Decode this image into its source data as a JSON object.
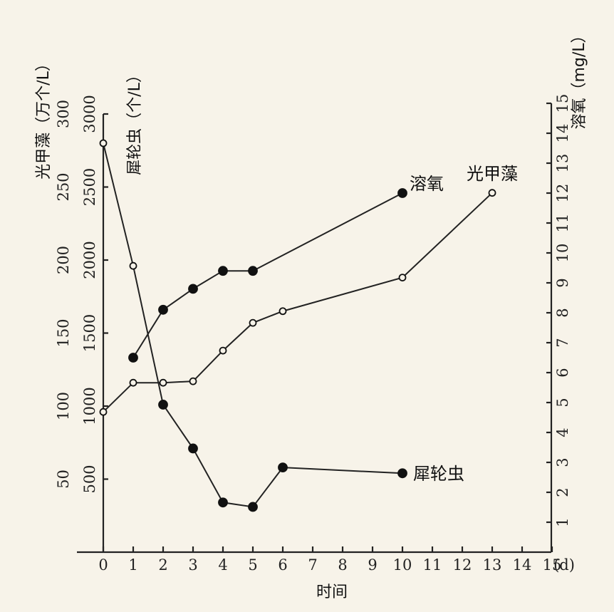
{
  "chart_data": {
    "type": "line",
    "xlabel": "时间",
    "x_unit": "(d)",
    "x_ticks": [
      0,
      1,
      2,
      3,
      4,
      5,
      6,
      7,
      8,
      9,
      10,
      11,
      12,
      13,
      14,
      15
    ],
    "axes": {
      "left_outer": {
        "label": "光甲藻（万个/L）",
        "ticks": [
          50,
          100,
          150,
          200,
          250,
          300
        ],
        "range": [
          0,
          300
        ]
      },
      "left_inner": {
        "label": "犀轮虫（个/L）",
        "ticks": [
          500,
          1000,
          1500,
          2000,
          2500,
          3000
        ],
        "range": [
          0,
          3000
        ]
      },
      "right": {
        "label": "溶氧（mg/L）",
        "ticks": [
          1,
          2,
          3,
          4,
          5,
          6,
          7,
          8,
          9,
          10,
          11,
          12,
          13,
          14,
          15
        ],
        "range": [
          0,
          15
        ]
      }
    },
    "series": [
      {
        "name": "溶氧",
        "axis": "right",
        "marker": "filled",
        "x": [
          1,
          2,
          3,
          4,
          5,
          10
        ],
        "y": [
          6.5,
          8.1,
          8.8,
          9.4,
          9.4,
          12.0
        ]
      },
      {
        "name": "光甲藻",
        "axis": "left_outer",
        "marker": "open",
        "x": [
          0,
          1,
          2,
          3,
          4,
          5,
          6,
          10,
          13
        ],
        "y": [
          96,
          116,
          116,
          117,
          138,
          157,
          165,
          188,
          246
        ]
      },
      {
        "name": "犀轮虫",
        "axis": "left_inner",
        "marker": "mixed",
        "x": [
          0,
          1,
          2,
          3,
          4,
          5,
          6,
          10
        ],
        "y": [
          2800,
          1960,
          1010,
          710,
          340,
          310,
          580,
          540
        ],
        "filled": [
          false,
          false,
          true,
          true,
          true,
          true,
          true,
          true
        ]
      }
    ]
  }
}
